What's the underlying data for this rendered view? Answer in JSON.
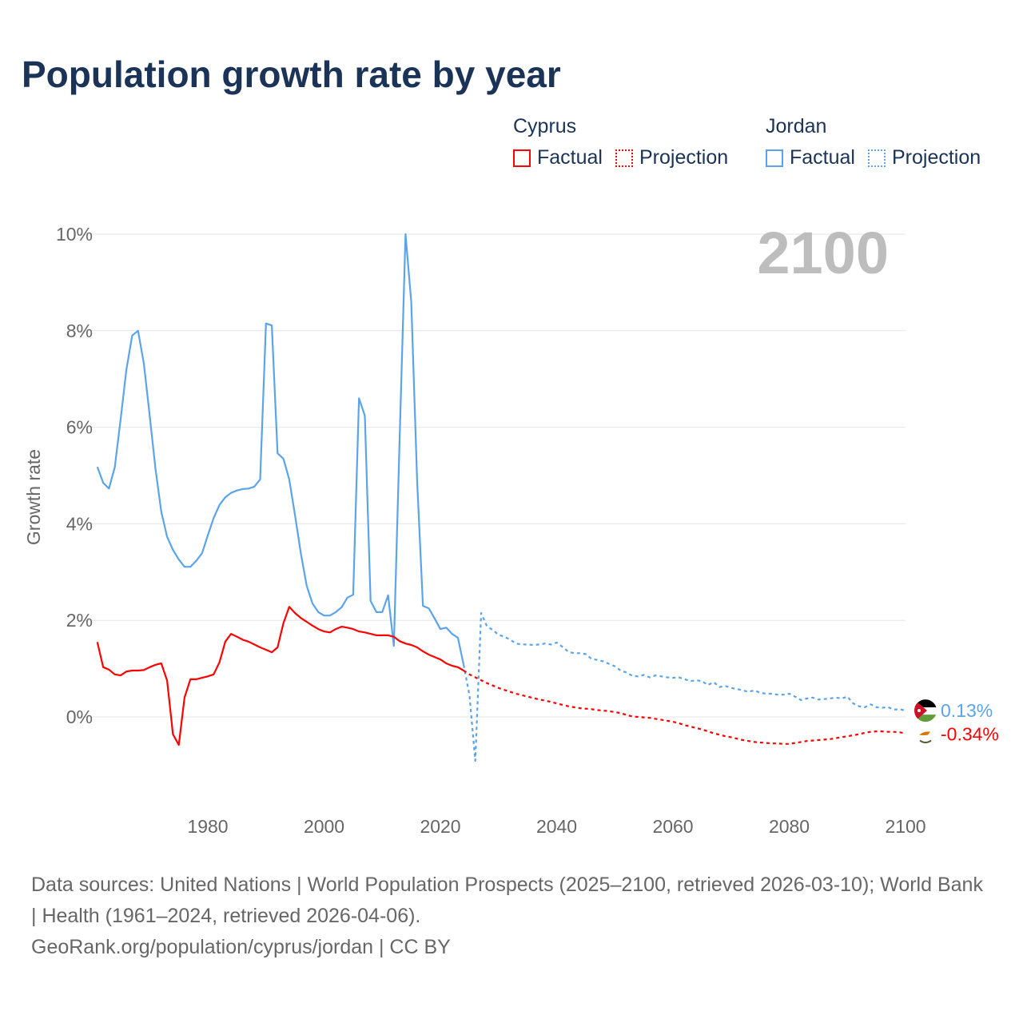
{
  "chart_data": {
    "type": "line",
    "title": "Population growth rate by year",
    "ylabel": "Growth rate",
    "xlabel": "",
    "xlim": [
      1961,
      2100
    ],
    "ylim": [
      -1.8,
      10
    ],
    "x_ticks": [
      1980,
      2000,
      2020,
      2040,
      2060,
      2080,
      2100
    ],
    "x_tick_labels": [
      "1980",
      "2000",
      "2020",
      "2040",
      "2060",
      "2080",
      "2100"
    ],
    "y_ticks": [
      0,
      2,
      4,
      6,
      8,
      10
    ],
    "y_tick_labels": [
      "0%",
      "2%",
      "4%",
      "6%",
      "8%",
      "10%"
    ],
    "grid": true,
    "year_display": "2100",
    "legend": {
      "placement": "top-right",
      "groups": [
        {
          "name": "Cyprus",
          "factual_label": "Factual",
          "projection_label": "Projection",
          "color": "#ff0000"
        },
        {
          "name": "Jordan",
          "factual_label": "Factual",
          "projection_label": "Projection",
          "color": "#5ba4ea"
        }
      ]
    },
    "series": [
      {
        "name": "Jordan",
        "color": "#5ba4ea",
        "end_label": "0.13%",
        "factual": {
          "start_year": 1961,
          "values": [
            5.18,
            4.85,
            4.73,
            5.17,
            6.16,
            7.2,
            7.9,
            8.0,
            7.32,
            6.24,
            5.13,
            4.25,
            3.73,
            3.46,
            3.26,
            3.11,
            3.11,
            3.23,
            3.39,
            3.76,
            4.12,
            4.39,
            4.55,
            4.64,
            4.69,
            4.72,
            4.73,
            4.77,
            4.92,
            8.15,
            8.11,
            5.46,
            5.35,
            4.92,
            4.17,
            3.39,
            2.72,
            2.35,
            2.17,
            2.1,
            2.1,
            2.17,
            2.27,
            2.47,
            2.53,
            6.6,
            6.24,
            2.4,
            2.17,
            2.17,
            2.52,
            1.47,
            5.8,
            10.0,
            8.59,
            4.9,
            2.3,
            2.25,
            2.04,
            1.82,
            1.85,
            1.72,
            1.64,
            1.08
          ]
        },
        "projection": {
          "start_year": 2024,
          "values": [
            1.08,
            0.45,
            -0.91,
            2.15,
            1.88,
            1.8,
            1.7,
            1.66,
            1.6,
            1.52,
            1.5,
            1.5,
            1.49,
            1.5,
            1.52,
            1.5,
            1.54,
            1.45,
            1.35,
            1.32,
            1.32,
            1.3,
            1.2,
            1.18,
            1.15,
            1.1,
            1.05,
            0.96,
            0.92,
            0.85,
            0.84,
            0.87,
            0.82,
            0.86,
            0.84,
            0.82,
            0.81,
            0.82,
            0.78,
            0.74,
            0.76,
            0.74,
            0.66,
            0.72,
            0.62,
            0.64,
            0.6,
            0.58,
            0.55,
            0.52,
            0.55,
            0.5,
            0.48,
            0.48,
            0.46,
            0.46,
            0.48,
            0.42,
            0.35,
            0.38,
            0.4,
            0.36,
            0.37,
            0.38,
            0.4,
            0.38,
            0.42,
            0.28,
            0.22,
            0.2,
            0.26,
            0.2,
            0.19,
            0.2,
            0.15,
            0.16,
            0.13
          ]
        }
      },
      {
        "name": "Cyprus",
        "color": "#ff0000",
        "end_label": "-0.34%",
        "factual": {
          "start_year": 1961,
          "values": [
            1.55,
            1.03,
            0.98,
            0.88,
            0.86,
            0.94,
            0.96,
            0.96,
            0.97,
            1.03,
            1.08,
            1.11,
            0.75,
            -0.36,
            -0.58,
            0.4,
            0.78,
            0.78,
            0.81,
            0.84,
            0.88,
            1.13,
            1.56,
            1.72,
            1.66,
            1.6,
            1.56,
            1.5,
            1.44,
            1.39,
            1.34,
            1.44,
            1.94,
            2.28,
            2.15,
            2.05,
            1.97,
            1.89,
            1.82,
            1.77,
            1.75,
            1.82,
            1.87,
            1.85,
            1.82,
            1.77,
            1.75,
            1.72,
            1.69,
            1.69,
            1.69,
            1.66,
            1.57,
            1.52,
            1.49,
            1.44,
            1.36,
            1.29,
            1.24,
            1.19,
            1.11,
            1.06,
            1.03,
            0.96
          ]
        },
        "projection": {
          "start_year": 2024,
          "values": [
            0.96,
            0.88,
            0.82,
            0.76,
            0.7,
            0.65,
            0.6,
            0.56,
            0.52,
            0.48,
            0.45,
            0.42,
            0.39,
            0.36,
            0.34,
            0.31,
            0.28,
            0.25,
            0.22,
            0.2,
            0.18,
            0.17,
            0.16,
            0.14,
            0.13,
            0.12,
            0.1,
            0.08,
            0.04,
            0.01,
            0.0,
            -0.01,
            -0.02,
            -0.04,
            -0.06,
            -0.08,
            -0.1,
            -0.13,
            -0.17,
            -0.2,
            -0.23,
            -0.26,
            -0.3,
            -0.34,
            -0.37,
            -0.4,
            -0.42,
            -0.45,
            -0.48,
            -0.5,
            -0.52,
            -0.53,
            -0.54,
            -0.55,
            -0.55,
            -0.56,
            -0.56,
            -0.54,
            -0.52,
            -0.5,
            -0.49,
            -0.48,
            -0.47,
            -0.46,
            -0.44,
            -0.42,
            -0.4,
            -0.38,
            -0.36,
            -0.33,
            -0.31,
            -0.3,
            -0.3,
            -0.31,
            -0.31,
            -0.32,
            -0.34
          ]
        }
      }
    ]
  },
  "footer": {
    "sources": "Data sources: United Nations | World Population Prospects (2025–2100, retrieved 2026-03-10); World Bank | Health (1961–2024, retrieved 2026-04-06).",
    "credit": "GeoRank.org/population/cyprus/jordan | CC BY"
  }
}
